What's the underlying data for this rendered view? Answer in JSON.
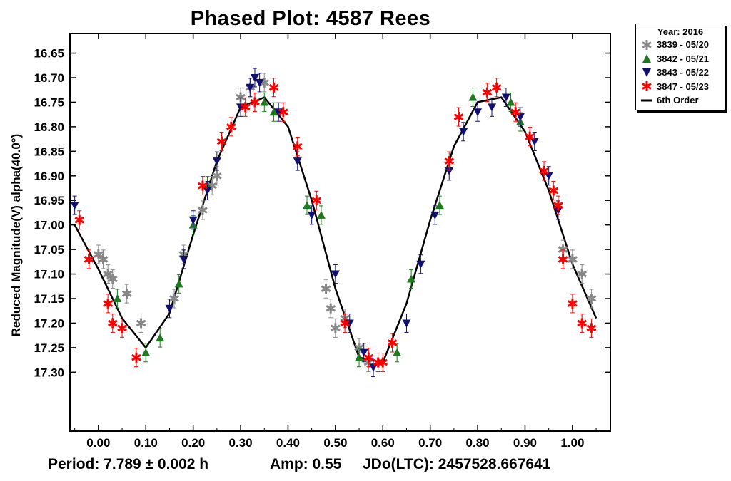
{
  "chart_data": {
    "type": "scatter",
    "title": "Phased Plot: 4587 Rees",
    "xlabel": "",
    "ylabel": "Reduced Magnitude(V) alpha(40.0°)",
    "xlim": [
      -0.06,
      1.08
    ],
    "ylim": [
      17.42,
      16.61
    ],
    "y_inverted": true,
    "x_ticks": [
      "0.00",
      "0.10",
      "0.20",
      "0.30",
      "0.40",
      "0.50",
      "0.60",
      "0.70",
      "0.80",
      "0.90",
      "1.00"
    ],
    "x_tick_values": [
      0,
      0.1,
      0.2,
      0.3,
      0.4,
      0.5,
      0.6,
      0.7,
      0.8,
      0.9,
      1.0
    ],
    "y_ticks": [
      "16.65",
      "16.70",
      "16.75",
      "16.80",
      "16.85",
      "16.90",
      "16.95",
      "17.00",
      "17.05",
      "17.10",
      "17.15",
      "17.20",
      "17.25",
      "17.30"
    ],
    "y_tick_values": [
      16.65,
      16.7,
      16.75,
      16.8,
      16.85,
      16.9,
      16.95,
      17.0,
      17.05,
      17.1,
      17.15,
      17.2,
      17.25,
      17.3
    ],
    "legend": {
      "title": "Year: 2016",
      "placement": "outside-top-right",
      "entries": [
        "3839 - 05/20",
        "3842 - 05/21",
        "3843 - 05/22",
        "3847 - 05/23",
        "6th Order"
      ]
    },
    "fit": {
      "name": "6th Order",
      "color": "#000000",
      "x": [
        -0.05,
        0.0,
        0.05,
        0.1,
        0.15,
        0.2,
        0.25,
        0.3,
        0.35,
        0.4,
        0.45,
        0.5,
        0.55,
        0.6,
        0.65,
        0.7,
        0.75,
        0.8,
        0.85,
        0.9,
        0.95,
        1.0,
        1.05
      ],
      "y": [
        17.0,
        17.09,
        17.19,
        17.25,
        17.18,
        17.02,
        16.87,
        16.76,
        16.74,
        16.8,
        16.95,
        17.13,
        17.27,
        17.28,
        17.16,
        16.99,
        16.84,
        16.75,
        16.74,
        16.81,
        16.93,
        17.08,
        17.19
      ]
    },
    "series": [
      {
        "name": "3839 - 05/20",
        "marker": "star",
        "color": "#888888",
        "x": [
          0.0,
          0.01,
          0.02,
          0.03,
          0.06,
          0.09,
          0.16,
          0.18,
          0.22,
          0.24,
          0.25,
          0.3,
          0.32,
          0.35,
          0.48,
          0.49,
          0.5,
          0.52,
          0.55,
          0.57,
          0.98,
          1.0,
          1.02,
          1.04
        ],
        "y": [
          17.06,
          17.07,
          17.1,
          17.11,
          17.14,
          17.2,
          17.15,
          17.06,
          16.97,
          16.92,
          16.9,
          16.74,
          16.72,
          16.71,
          17.13,
          17.17,
          17.21,
          17.19,
          17.25,
          17.28,
          17.05,
          17.07,
          17.1,
          17.15
        ]
      },
      {
        "name": "3842 - 05/21",
        "marker": "triangle",
        "color": "#1f7a1f",
        "x": [
          0.04,
          0.1,
          0.13,
          0.17,
          0.2,
          0.23,
          0.35,
          0.37,
          0.44,
          0.47,
          0.55,
          0.63,
          0.66,
          0.72,
          0.79,
          0.87,
          0.89
        ],
        "y": [
          17.15,
          17.26,
          17.23,
          17.12,
          17.0,
          16.92,
          16.75,
          16.77,
          16.96,
          16.98,
          17.27,
          17.26,
          17.11,
          16.96,
          16.74,
          16.75,
          16.79
        ]
      },
      {
        "name": "3843 - 05/22",
        "marker": "triangle-down",
        "color": "#101070",
        "x": [
          -0.05,
          0.15,
          0.18,
          0.2,
          0.23,
          0.25,
          0.3,
          0.32,
          0.33,
          0.34,
          0.38,
          0.42,
          0.45,
          0.5,
          0.53,
          0.56,
          0.58,
          0.65,
          0.68,
          0.71,
          0.74,
          0.77,
          0.8,
          0.83,
          0.86,
          0.89,
          0.92,
          0.95,
          0.97
        ],
        "y": [
          16.96,
          17.17,
          17.07,
          16.99,
          16.93,
          16.87,
          16.76,
          16.72,
          16.7,
          16.71,
          16.77,
          16.87,
          16.98,
          17.1,
          17.2,
          17.26,
          17.29,
          17.2,
          17.08,
          16.98,
          16.89,
          16.81,
          16.77,
          16.76,
          16.74,
          16.78,
          16.83,
          16.9,
          16.97
        ]
      },
      {
        "name": "3847 - 05/23",
        "marker": "star",
        "color": "#ff0000",
        "x": [
          -0.04,
          -0.02,
          0.02,
          0.03,
          0.05,
          0.08,
          0.22,
          0.26,
          0.28,
          0.31,
          0.33,
          0.37,
          0.39,
          0.42,
          0.46,
          0.52,
          0.57,
          0.59,
          0.6,
          0.62,
          0.74,
          0.76,
          0.82,
          0.84,
          0.88,
          0.91,
          0.94,
          0.96,
          0.97,
          0.98,
          1.0,
          1.02,
          1.04
        ],
        "y": [
          16.99,
          17.07,
          17.16,
          17.2,
          17.21,
          17.27,
          16.92,
          16.83,
          16.8,
          16.76,
          16.75,
          16.72,
          16.77,
          16.84,
          16.95,
          17.2,
          17.27,
          17.28,
          17.28,
          17.24,
          16.87,
          16.78,
          16.73,
          16.72,
          16.77,
          16.82,
          16.89,
          16.93,
          16.96,
          17.07,
          17.16,
          17.2,
          17.21
        ]
      }
    ]
  },
  "footer": {
    "period": "Period: 7.789 ± 0.002 h",
    "amp": "Amp: 0.55",
    "jdo": "JDo(LTC): 2457528.667641"
  }
}
